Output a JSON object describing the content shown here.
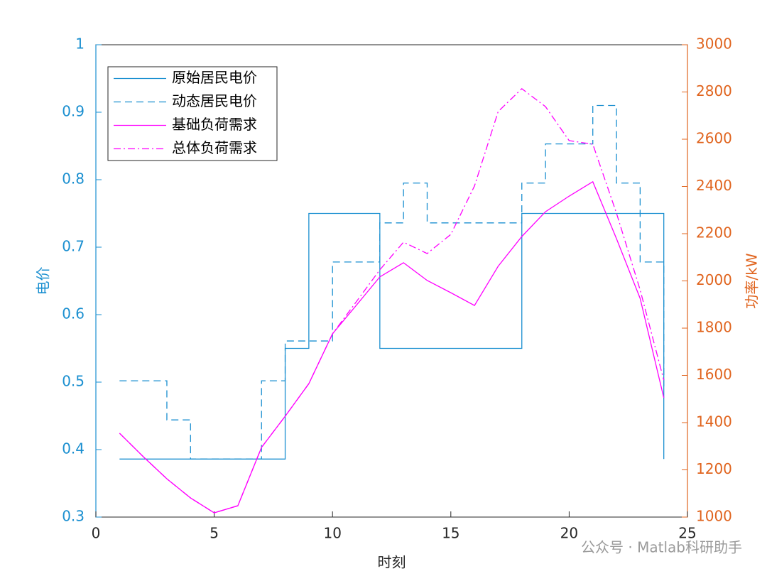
{
  "chart_data": {
    "type": "line",
    "xlabel": "时刻",
    "ylabel": "电价",
    "y2label": "功率/kW",
    "watermark": "公众号 · Matlab科研助手",
    "x": [
      1,
      2,
      3,
      4,
      5,
      6,
      7,
      8,
      9,
      10,
      11,
      12,
      13,
      14,
      15,
      16,
      17,
      18,
      19,
      20,
      21,
      22,
      23,
      24
    ],
    "xlim": [
      0,
      25
    ],
    "xticks": [
      0,
      5,
      10,
      15,
      20,
      25
    ],
    "ylim": [
      0.3,
      1
    ],
    "yticks": [
      0.3,
      0.4,
      0.5,
      0.6,
      0.7,
      0.8,
      0.9,
      1
    ],
    "y2lim": [
      1000,
      3000
    ],
    "y2ticks": [
      1000,
      1200,
      1400,
      1600,
      1800,
      2000,
      2200,
      2400,
      2600,
      2800,
      3000
    ],
    "y_color": "#1a8fd0",
    "y2_color": "#e0641e",
    "legend": "upper left",
    "series": [
      {
        "name": "原始居民电价",
        "color": "#1a8fd0",
        "step": true,
        "dash": "solid",
        "axis": "y",
        "values": [
          0.386,
          0.386,
          0.386,
          0.386,
          0.386,
          0.386,
          0.386,
          0.55,
          0.75,
          0.75,
          0.75,
          0.55,
          0.55,
          0.55,
          0.55,
          0.55,
          0.55,
          0.75,
          0.75,
          0.75,
          0.75,
          0.75,
          0.75,
          0.386
        ]
      },
      {
        "name": "动态居民电价",
        "color": "#1a8fd0",
        "step": true,
        "dash": "dashed",
        "axis": "y",
        "values": [
          0.502,
          0.502,
          0.444,
          0.386,
          0.386,
          0.386,
          0.502,
          0.561,
          0.561,
          0.678,
          0.678,
          0.736,
          0.795,
          0.736,
          0.736,
          0.736,
          0.736,
          0.795,
          0.853,
          0.853,
          0.91,
          0.795,
          0.678,
          0.487
        ]
      },
      {
        "name": "基础负荷需求",
        "color": "#ff00ff",
        "step": false,
        "dash": "solid",
        "axis": "y2",
        "values": [
          1355,
          1256,
          1162,
          1081,
          1018,
          1048,
          1295,
          1427,
          1565,
          1776,
          1896,
          2017,
          2077,
          2002,
          1950,
          1896,
          2062,
          2188,
          2293,
          2359,
          2420,
          2179,
          1926,
          1505
        ]
      },
      {
        "name": "总体负荷需求",
        "color": "#ff00ff",
        "step": false,
        "dash": "dashdot",
        "axis": "y2",
        "values": [
          1355,
          1256,
          1162,
          1081,
          1018,
          1048,
          1295,
          1427,
          1565,
          1776,
          1911,
          2047,
          2164,
          2116,
          2197,
          2402,
          2717,
          2814,
          2738,
          2594,
          2579,
          2287,
          1962,
          1580
        ]
      }
    ]
  }
}
